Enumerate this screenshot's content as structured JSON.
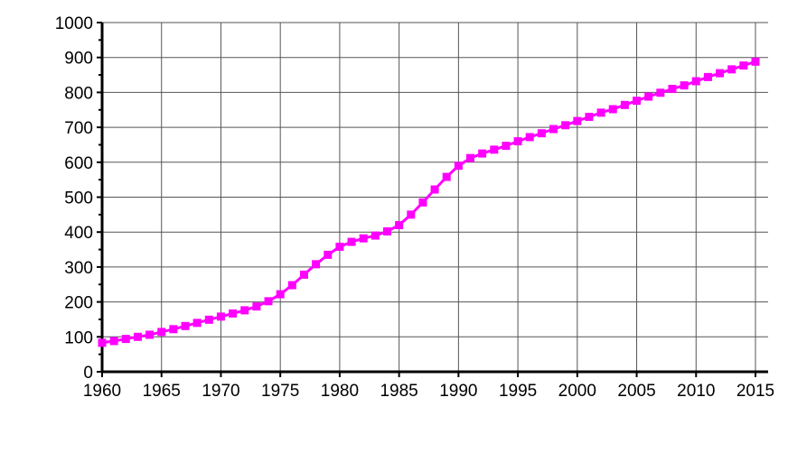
{
  "chart_data": {
    "type": "line",
    "title": "",
    "xlabel": "",
    "ylabel": "",
    "xlim": [
      1960,
      2015
    ],
    "ylim": [
      0,
      1000
    ],
    "grid": true,
    "legend": "none",
    "x_ticks": [
      "1960",
      "1965",
      "1970",
      "1975",
      "1980",
      "1985",
      "1990",
      "1995",
      "2000",
      "2005",
      "2010",
      "2015"
    ],
    "y_ticks": [
      "0",
      "100",
      "200",
      "300",
      "400",
      "500",
      "600",
      "700",
      "800",
      "900",
      "1000"
    ],
    "series": [
      {
        "color": "#ff00ff",
        "marker": "square",
        "x": [
          1960,
          1961,
          1962,
          1963,
          1964,
          1965,
          1966,
          1967,
          1968,
          1969,
          1970,
          1971,
          1972,
          1973,
          1974,
          1975,
          1976,
          1977,
          1978,
          1979,
          1980,
          1981,
          1982,
          1983,
          1984,
          1985,
          1986,
          1987,
          1988,
          1989,
          1990,
          1991,
          1992,
          1993,
          1994,
          1995,
          1996,
          1997,
          1998,
          1999,
          2000,
          2001,
          2002,
          2003,
          2004,
          2005,
          2006,
          2007,
          2008,
          2009,
          2010,
          2011,
          2012,
          2013,
          2014,
          2015
        ],
        "y": [
          83,
          88,
          94,
          100,
          106,
          114,
          122,
          131,
          140,
          149,
          158,
          167,
          176,
          187,
          202,
          222,
          248,
          278,
          308,
          335,
          358,
          372,
          382,
          390,
          402,
          420,
          450,
          485,
          522,
          558,
          590,
          612,
          625,
          636,
          647,
          660,
          672,
          683,
          695,
          706,
          718,
          730,
          742,
          752,
          764,
          776,
          788,
          799,
          810,
          820,
          832,
          844,
          855,
          866,
          877,
          888
        ]
      }
    ]
  }
}
